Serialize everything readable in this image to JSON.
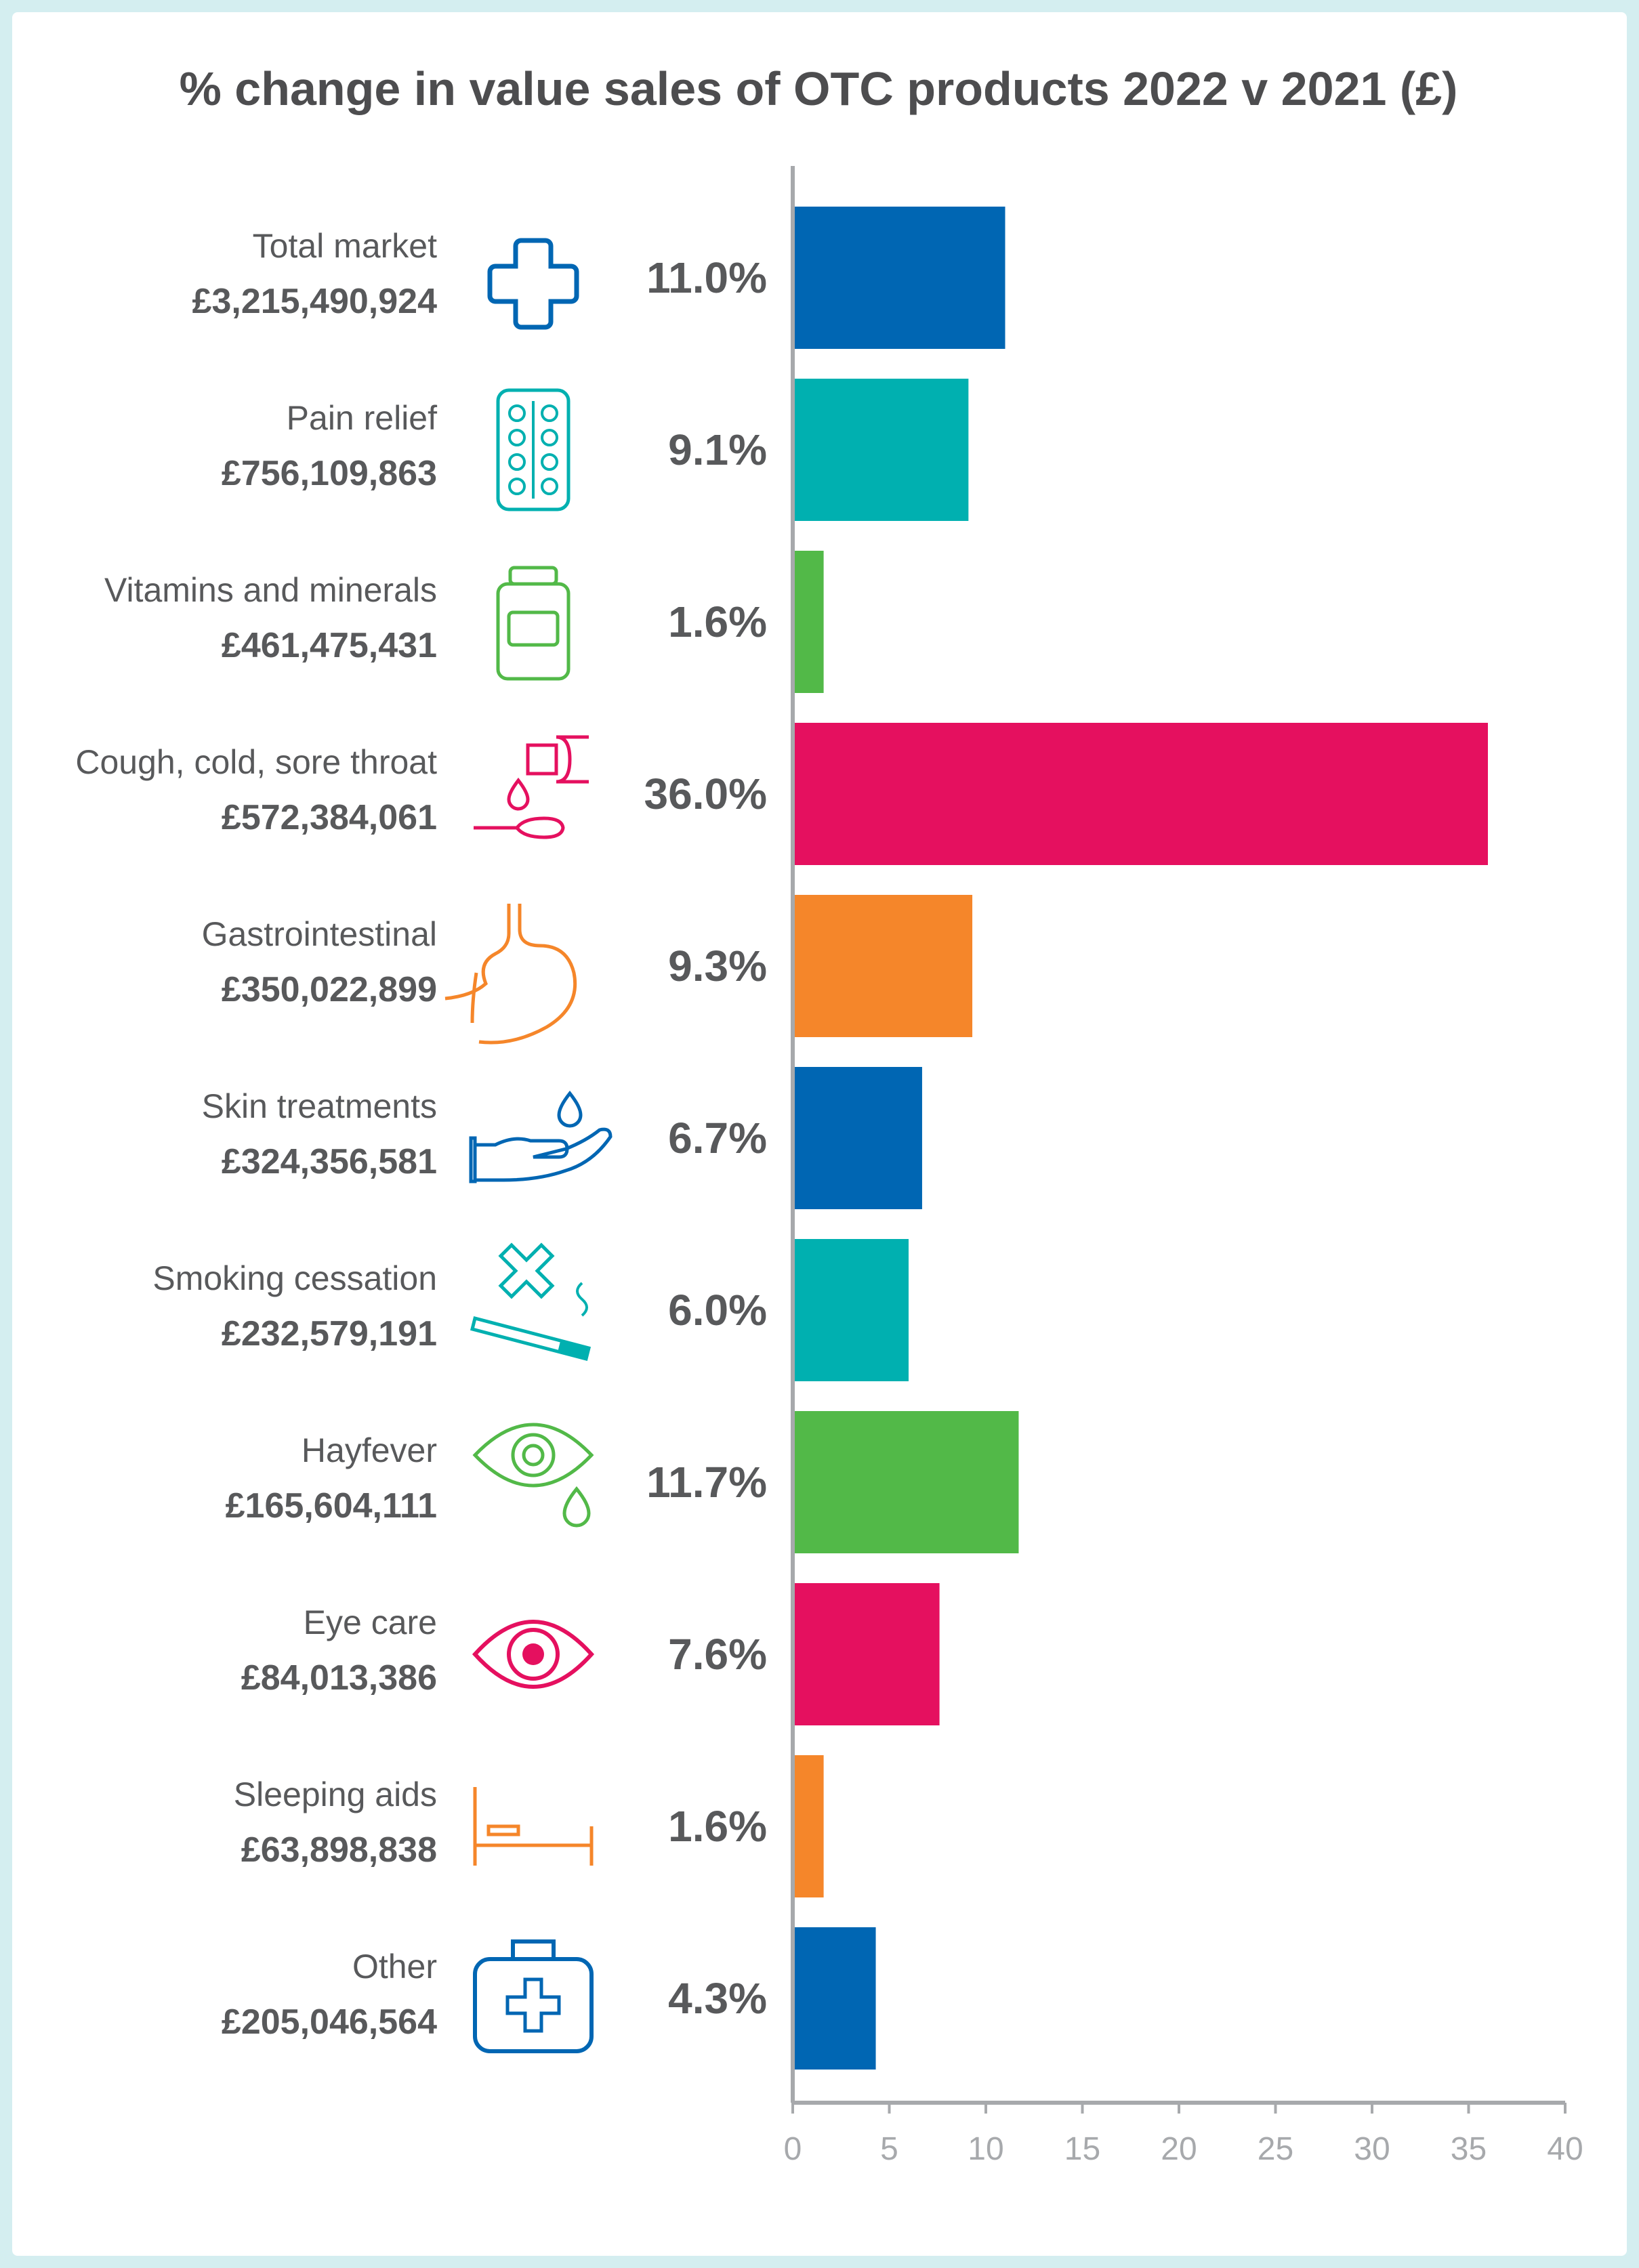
{
  "chart_data": {
    "type": "bar",
    "orientation": "horizontal",
    "title": "% change in value sales of OTC products 2022 v 2021 (£)",
    "xlabel": "",
    "ylabel": "",
    "xlim": [
      0,
      40
    ],
    "ticks": [
      0,
      5,
      10,
      15,
      20,
      25,
      30,
      35,
      40
    ],
    "grid": false,
    "categories": [
      {
        "label": "Total market",
        "value_text": "£3,215,490,924",
        "pct": 11.0,
        "pct_text": "11.0%",
        "color": "#0066b3",
        "icon": "medical-cross-icon"
      },
      {
        "label": "Pain relief",
        "value_text": "£756,109,863",
        "pct": 9.1,
        "pct_text": "9.1%",
        "color": "#00b0b0",
        "icon": "pill-blister-icon"
      },
      {
        "label": "Vitamins and minerals",
        "value_text": "£461,475,431",
        "pct": 1.6,
        "pct_text": "1.6%",
        "color": "#52b948",
        "icon": "vitamin-jar-icon"
      },
      {
        "label": "Cough, cold, sore throat",
        "value_text": "£572,384,061",
        "pct": 36.0,
        "pct_text": "36.0%",
        "color": "#e5105f",
        "icon": "medicine-spoon-icon"
      },
      {
        "label": "Gastrointestinal",
        "value_text": "£350,022,899",
        "pct": 9.3,
        "pct_text": "9.3%",
        "color": "#f5862a",
        "icon": "stomach-icon"
      },
      {
        "label": "Skin treatments",
        "value_text": "£324,356,581",
        "pct": 6.7,
        "pct_text": "6.7%",
        "color": "#0066b3",
        "icon": "hand-drop-icon"
      },
      {
        "label": "Smoking cessation",
        "value_text": "£232,579,191",
        "pct": 6.0,
        "pct_text": "6.0%",
        "color": "#00b0b0",
        "icon": "no-smoking-icon"
      },
      {
        "label": "Hayfever",
        "value_text": "£165,604,111",
        "pct": 11.7,
        "pct_text": "11.7%",
        "color": "#52b948",
        "icon": "watery-eye-icon"
      },
      {
        "label": "Eye care",
        "value_text": "£84,013,386",
        "pct": 7.6,
        "pct_text": "7.6%",
        "color": "#e5105f",
        "icon": "eye-icon"
      },
      {
        "label": "Sleeping aids",
        "value_text": "£63,898,838",
        "pct": 1.6,
        "pct_text": "1.6%",
        "color": "#f5862a",
        "icon": "bed-icon"
      },
      {
        "label": "Other",
        "value_text": "£205,046,564",
        "pct": 4.3,
        "pct_text": "4.3%",
        "color": "#0066b3",
        "icon": "first-aid-kit-icon"
      }
    ]
  }
}
